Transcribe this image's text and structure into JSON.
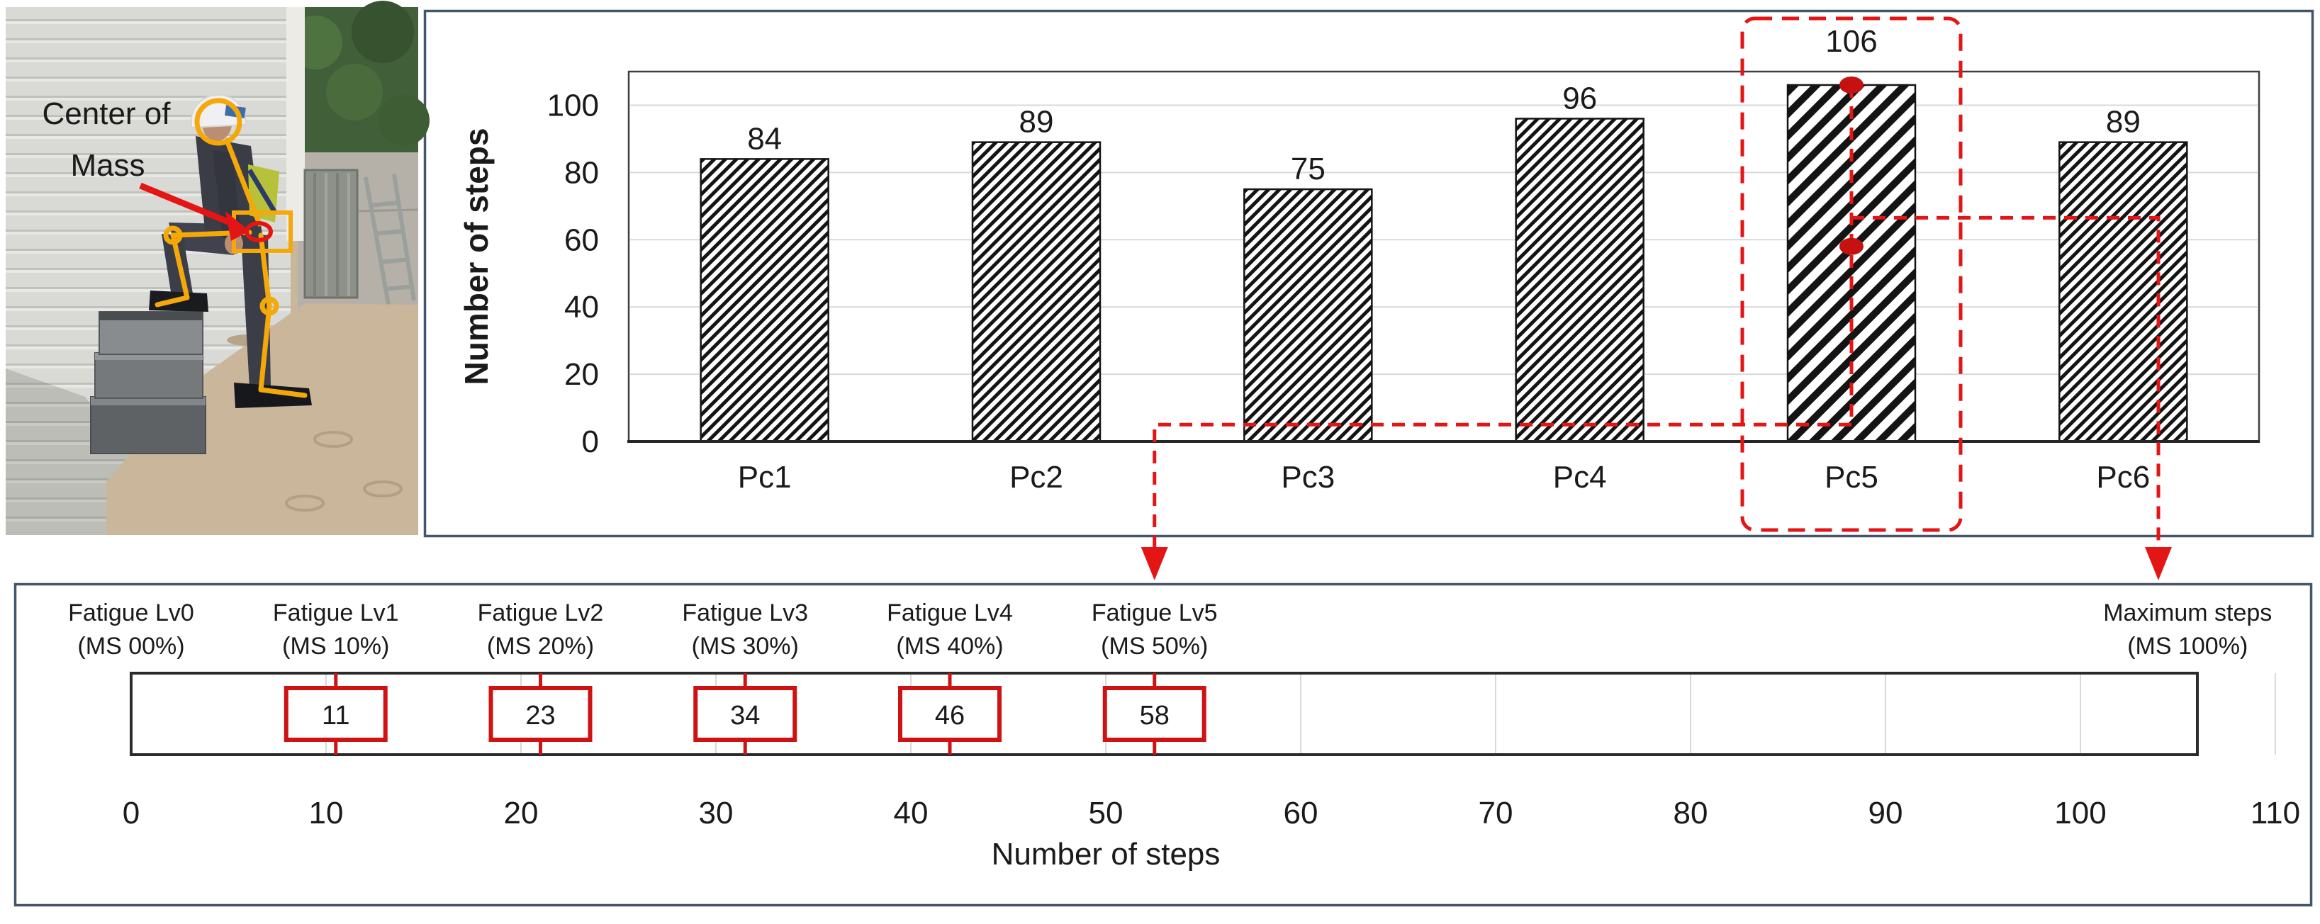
{
  "photo": {
    "annotation_line1": "Center of",
    "annotation_line2": "Mass"
  },
  "colors": {
    "panel_border": "#44546A",
    "annotation_red": "#e31515",
    "marker_red": "#c61111",
    "box_red": "#cf1212",
    "grid_gray": "#d9d9d9",
    "bar_stroke": "#141414",
    "frame_gray": "#3f3f3f"
  },
  "chart_data": [
    {
      "type": "bar",
      "title": "",
      "categories": [
        "Pc1",
        "Pc2",
        "Pc3",
        "Pc4",
        "Pc5",
        "Pc6"
      ],
      "values": [
        84,
        89,
        75,
        96,
        106,
        89
      ],
      "ylabel": "Number of steps",
      "xlabel": "",
      "ylim": [
        0,
        110
      ],
      "yticks": [
        0,
        20,
        40,
        60,
        80,
        100
      ],
      "grid": "horizontal",
      "legend": false,
      "bar_fill": "diagonal-hatch",
      "highlighted_category": "Pc5",
      "highlight_marker_values": [
        106,
        58
      ],
      "connector_left_y": 5,
      "connector_right_y": 66.5
    },
    {
      "type": "bar",
      "orientation": "horizontal",
      "title": "",
      "xlabel": "Number of steps",
      "xlim": [
        0,
        110
      ],
      "xticks": [
        0,
        10,
        20,
        30,
        40,
        50,
        60,
        70,
        80,
        90,
        100,
        110
      ],
      "grid": "vertical",
      "bar_range": [
        0,
        106
      ],
      "levels": [
        {
          "label": "Fatigue Lv0",
          "sub": "(MS 00%)",
          "position": 0,
          "box_value": null
        },
        {
          "label": "Fatigue Lv1",
          "sub": "(MS 10%)",
          "position": 10.5,
          "box_value": 11
        },
        {
          "label": "Fatigue Lv2",
          "sub": "(MS 20%)",
          "position": 21,
          "box_value": 23
        },
        {
          "label": "Fatigue Lv3",
          "sub": "(MS 30%)",
          "position": 31.5,
          "box_value": 34
        },
        {
          "label": "Fatigue Lv4",
          "sub": "(MS 40%)",
          "position": 42,
          "box_value": 46
        },
        {
          "label": "Fatigue Lv5",
          "sub": "(MS 50%)",
          "position": 52.5,
          "box_value": 58
        }
      ],
      "max_label": {
        "label": "Maximum steps",
        "sub": "(MS 100%)",
        "position": 105.5
      },
      "arrow_positions": [
        52.5,
        104
      ]
    }
  ]
}
